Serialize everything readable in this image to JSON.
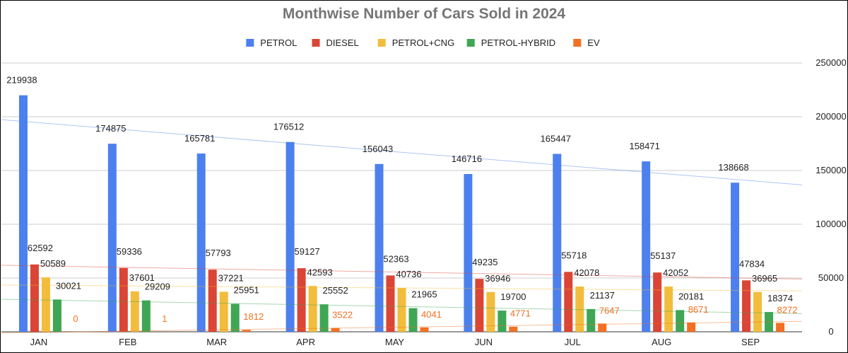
{
  "chart_data": {
    "type": "bar",
    "title": "Monthwise Number of Cars Sold in 2024",
    "categories": [
      "JAN",
      "FEB",
      "MAR",
      "APR",
      "MAY",
      "JUN",
      "JUL",
      "AUG",
      "SEP"
    ],
    "series": [
      {
        "name": "PETROL",
        "color": "#4c80ee",
        "values": [
          219938,
          174875,
          165781,
          176512,
          156043,
          146716,
          165447,
          158471,
          138668
        ]
      },
      {
        "name": "DIESEL",
        "color": "#da4535",
        "values": [
          62592,
          59336,
          57793,
          59127,
          52363,
          49235,
          55718,
          55137,
          47834
        ]
      },
      {
        "name": "PETROL+CNG",
        "color": "#f2bd3c",
        "values": [
          50589,
          37601,
          37221,
          42593,
          40736,
          36946,
          42078,
          42052,
          36965
        ]
      },
      {
        "name": "PETROL-HYBRID",
        "color": "#3fa654",
        "values": [
          30021,
          29209,
          25951,
          25552,
          21965,
          19700,
          21137,
          20181,
          18374
        ]
      },
      {
        "name": "EV",
        "color": "#f27023",
        "values": [
          0,
          1,
          1812,
          3522,
          4041,
          4771,
          7647,
          8671,
          8272
        ]
      }
    ],
    "yaxis": {
      "position": "right",
      "ylim": [
        0,
        250000
      ],
      "ticks": [
        0,
        50000,
        100000,
        150000,
        200000,
        250000
      ]
    },
    "legend": "top-center",
    "grid": true,
    "trendlines": true
  }
}
